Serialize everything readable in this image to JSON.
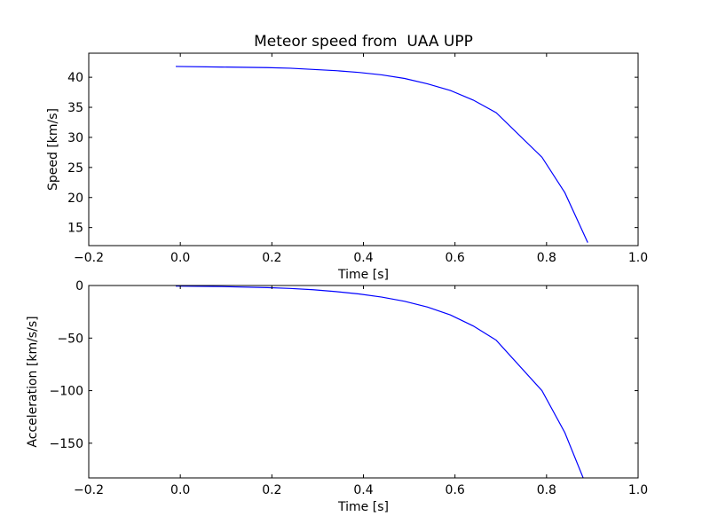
{
  "chart_data": [
    {
      "type": "line",
      "title": "Meteor speed from  UAA UPP",
      "xlabel": "Time [s]",
      "ylabel": "Speed [km/s]",
      "xlim": [
        -0.2,
        1.0
      ],
      "ylim": [
        12.0,
        44.0
      ],
      "xticks": [
        -0.2,
        0.0,
        0.2,
        0.4,
        0.6,
        0.8,
        1.0
      ],
      "xtick_labels": [
        "−0.2",
        "0.0",
        "0.2",
        "0.4",
        "0.6",
        "0.8",
        "1.0"
      ],
      "yticks": [
        15,
        20,
        25,
        30,
        35,
        40
      ],
      "ytick_labels": [
        "15",
        "20",
        "25",
        "30",
        "35",
        "40"
      ],
      "grid": false,
      "line_color": "#0000ff",
      "series": [
        {
          "x": [
            -0.01,
            0.09,
            0.19,
            0.24,
            0.29,
            0.34,
            0.39,
            0.44,
            0.49,
            0.54,
            0.59,
            0.64,
            0.69,
            0.79,
            0.84,
            0.89
          ],
          "y": [
            41.8,
            41.7,
            41.6,
            41.5,
            41.3,
            41.1,
            40.8,
            40.4,
            39.8,
            38.9,
            37.8,
            36.2,
            34.1,
            26.7,
            20.8,
            12.5
          ]
        }
      ]
    },
    {
      "type": "line",
      "title": "",
      "xlabel": "Time [s]",
      "ylabel": "Acceleration [km/s/s]",
      "xlim": [
        -0.2,
        1.0
      ],
      "ylim": [
        -183.0,
        0.0
      ],
      "xticks": [
        -0.2,
        0.0,
        0.2,
        0.4,
        0.6,
        0.8,
        1.0
      ],
      "xtick_labels": [
        "−0.2",
        "0.0",
        "0.2",
        "0.4",
        "0.6",
        "0.8",
        "1.0"
      ],
      "yticks": [
        0,
        -50,
        -100,
        -150
      ],
      "ytick_labels": [
        "0",
        "−50",
        "−100",
        "−150"
      ],
      "grid": false,
      "line_color": "#0000ff",
      "series": [
        {
          "x": [
            -0.01,
            0.09,
            0.19,
            0.24,
            0.29,
            0.34,
            0.39,
            0.44,
            0.49,
            0.54,
            0.59,
            0.64,
            0.69,
            0.79,
            0.84,
            0.88
          ],
          "y": [
            -0.5,
            -1.0,
            -2.0,
            -2.8,
            -4.0,
            -5.8,
            -8.0,
            -11.0,
            -15.0,
            -20.5,
            -28.0,
            -38.5,
            -52.0,
            -100.0,
            -140.0,
            -183.0
          ]
        }
      ]
    }
  ]
}
